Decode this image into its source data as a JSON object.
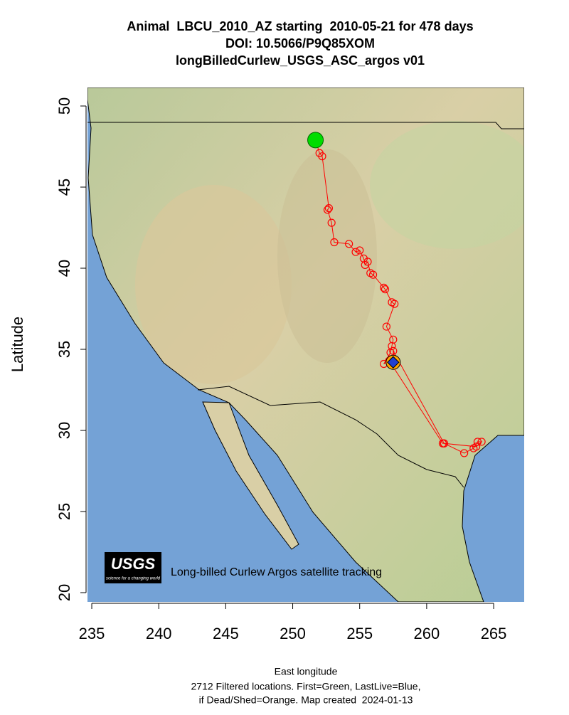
{
  "chart_data": {
    "type": "scatter",
    "title": [
      "Animal  LBCU_2010_AZ starting  2010-05-21 for 478 days",
      "DOI: 10.5066/P9Q85XOM",
      "longBilledCurlew_USGS_ASC_argos v01"
    ],
    "xlabel": "East longitude",
    "ylabel": "Latitude",
    "caption": [
      "2712 Filtered locations. First=Green, LastLive=Blue,",
      "if Dead/Shed=Orange. Map created  2024-01-13"
    ],
    "annotation": "Long-billed Curlew Argos satellite tracking",
    "logo": {
      "text": "USGS",
      "tagline": "science for a changing world"
    },
    "xlim": [
      234.68,
      267.28
    ],
    "ylim": [
      19.43,
      51.14
    ],
    "xticks": [
      235,
      240,
      245,
      250,
      255,
      260,
      265
    ],
    "yticks": [
      20,
      25,
      30,
      35,
      40,
      45,
      50
    ],
    "first_color": "#00dd00",
    "last_color": "#1f3fd0",
    "last_ring_color": "#ffa500",
    "series": [
      {
        "color": "#ff0000",
        "x": [
          251.7,
          252.0,
          252.2,
          252.7,
          252.6,
          252.9,
          253.1,
          254.2,
          254.7,
          255.0,
          255.3,
          255.4,
          255.6,
          255.8,
          256.0,
          256.8,
          256.9,
          257.4,
          257.6,
          257.0,
          257.5,
          257.4,
          257.3,
          256.8,
          257.2,
          261.2,
          261.3,
          262.8,
          263.5,
          263.8,
          264.1,
          263.7,
          261.3,
          257.5,
          257.5
        ],
        "y": [
          47.9,
          47.1,
          46.9,
          43.7,
          43.6,
          42.8,
          41.6,
          41.5,
          41.0,
          41.1,
          40.6,
          40.2,
          40.4,
          39.7,
          39.6,
          38.8,
          38.7,
          37.9,
          37.8,
          36.4,
          35.6,
          35.2,
          34.8,
          34.1,
          34.3,
          29.2,
          29.2,
          28.6,
          28.9,
          29.3,
          29.3,
          29.0,
          29.2,
          34.9,
          34.2
        ]
      }
    ]
  }
}
